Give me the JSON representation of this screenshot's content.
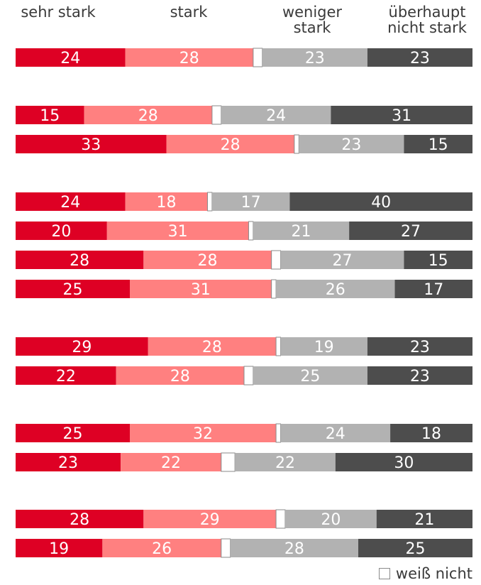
{
  "chart_data": {
    "type": "bar",
    "orientation": "horizontal",
    "stacked": true,
    "xlim": [
      0,
      100
    ],
    "series": [
      {
        "name": "sehr stark",
        "color": "#de0024"
      },
      {
        "name": "stark",
        "color": "#ff8080"
      },
      {
        "name": "weiß nicht",
        "color": "#ffffff"
      },
      {
        "name": "weniger stark",
        "color": "#b2b2b2"
      },
      {
        "name": "überhaupt nicht stark",
        "color": "#4d4d4d"
      }
    ],
    "header_labels": [
      {
        "line1": "",
        "line2": "sehr stark"
      },
      {
        "line1": "",
        "line2": "stark"
      },
      {
        "line1": "weniger",
        "line2": "stark"
      },
      {
        "line1": "überhaupt",
        "line2": "nicht stark"
      }
    ],
    "groups": [
      {
        "rows": [
          [
            24,
            28,
            2,
            23,
            23
          ]
        ]
      },
      {
        "rows": [
          [
            15,
            28,
            2,
            24,
            31
          ],
          [
            33,
            28,
            1,
            23,
            15
          ]
        ]
      },
      {
        "rows": [
          [
            24,
            18,
            1,
            17,
            40
          ],
          [
            20,
            31,
            1,
            21,
            27
          ],
          [
            28,
            28,
            2,
            27,
            15
          ],
          [
            25,
            31,
            1,
            26,
            17
          ]
        ]
      },
      {
        "rows": [
          [
            29,
            28,
            1,
            19,
            23
          ],
          [
            22,
            28,
            2,
            25,
            23
          ]
        ]
      },
      {
        "rows": [
          [
            25,
            32,
            1,
            24,
            18
          ],
          [
            23,
            22,
            3,
            22,
            30
          ]
        ]
      },
      {
        "rows": [
          [
            28,
            29,
            2,
            20,
            21
          ],
          [
            19,
            26,
            2,
            28,
            25
          ]
        ]
      }
    ],
    "legend": {
      "label": "weiß nicht",
      "position": "bottom-right"
    }
  }
}
